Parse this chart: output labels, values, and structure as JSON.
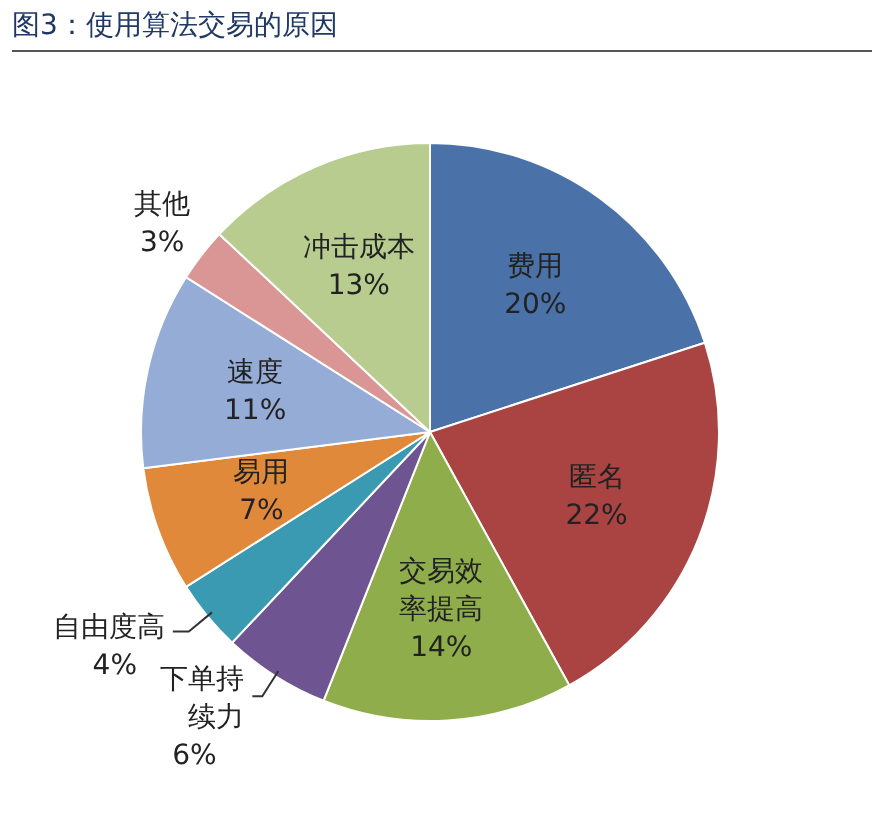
{
  "chart_data": {
    "type": "pie",
    "title": "图3：使用算法交易的原因",
    "categories": [
      "费用",
      "匿名",
      "交易效率提高",
      "下单持续力",
      "自由度高",
      "易用",
      "速度",
      "其他",
      "冲击成本"
    ],
    "values": [
      20,
      22,
      14,
      6,
      4,
      7,
      11,
      3,
      13
    ],
    "colors": [
      "#4a72a8",
      "#a94442",
      "#8fad4a",
      "#6e5591",
      "#3a9ab1",
      "#e0893a",
      "#95acd6",
      "#d99694",
      "#b7cc8e"
    ],
    "value_labels": [
      "20%",
      "22%",
      "14%",
      "6%",
      "4%",
      "7%",
      "11%",
      "3%",
      "13%"
    ],
    "legend": false
  }
}
